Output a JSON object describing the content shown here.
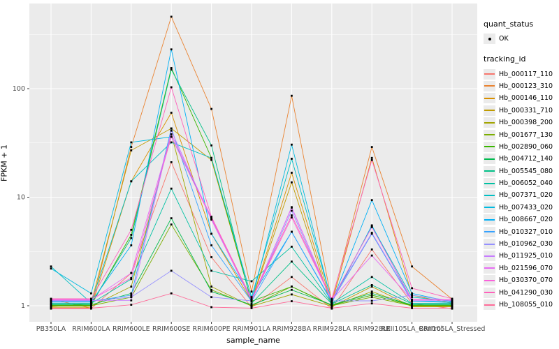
{
  "figure": {
    "background": "#FFFFFF",
    "panel_background": "#EBEBEB",
    "grid_color": "#FFFFFF",
    "tick_mark_color": "#333333",
    "tick_label_color": "#4D4D4D",
    "point_color": "#000000"
  },
  "chart_data": {
    "type": "line",
    "title": "",
    "xlabel": "sample_name",
    "ylabel": "FPKM + 1",
    "y_scale": "log10",
    "ylim": [
      0.8,
      610
    ],
    "y_ticks": [
      "1",
      "10",
      "100"
    ],
    "y_tick_values": [
      1,
      10,
      100
    ],
    "y_minor_values": [
      3.162,
      31.62,
      316.2
    ],
    "grid": "on",
    "legend_position": "right",
    "point_marker": "small-black-point",
    "categories": [
      "PB350LA",
      "RRIM600LA",
      "RRIM600LE",
      "RRIM600SE",
      "RRIM600PE",
      "RRIM901LA",
      "RRIM928BA",
      "RRIM928LA",
      "RRIM928LE",
      "RRII105LA_Control",
      "RRII105LA_Stressed"
    ],
    "series": [
      {
        "name": "Hb_000117_110",
        "color": "#F8766D",
        "values": [
          0.94,
          0.94,
          2.0,
          21,
          2.8,
          0.97,
          1.84,
          0.94,
          3.3,
          1.05,
          0.94
        ]
      },
      {
        "name": "Hb_000123_310",
        "color": "#EA8331",
        "values": [
          1.15,
          0.95,
          29,
          460,
          65,
          1.35,
          86,
          1.1,
          29,
          2.3,
          1.15
        ]
      },
      {
        "name": "Hb_000146_110",
        "color": "#D89000",
        "values": [
          0.96,
          0.96,
          14,
          60,
          4.6,
          1.1,
          16.8,
          1.05,
          23,
          1.25,
          1.05
        ]
      },
      {
        "name": "Hb_000331_710",
        "color": "#C09B00",
        "values": [
          0.98,
          1.05,
          27,
          43,
          22,
          1.1,
          13.7,
          0.98,
          1.5,
          0.98,
          0.98
        ]
      },
      {
        "name": "Hb_000398_200",
        "color": "#A3A500",
        "values": [
          0.99,
          0.99,
          1.5,
          38,
          1.5,
          0.99,
          1.27,
          0.99,
          1.35,
          0.99,
          0.99
        ]
      },
      {
        "name": "Hb_001677_130",
        "color": "#7CAE00",
        "values": [
          1.0,
          1.0,
          1.2,
          5.6,
          1.4,
          1.0,
          1.5,
          1.0,
          1.2,
          1.0,
          1.0
        ]
      },
      {
        "name": "Hb_002890_060",
        "color": "#39B600",
        "values": [
          1.01,
          1.01,
          4.5,
          155,
          23,
          1.1,
          1.5,
          1.01,
          1.25,
          1.01,
          1.01
        ]
      },
      {
        "name": "Hb_004712_140",
        "color": "#00BB4E",
        "values": [
          1.02,
          1.02,
          1.3,
          6.4,
          1.35,
          1.02,
          1.4,
          1.02,
          1.3,
          1.02,
          1.02
        ]
      },
      {
        "name": "Hb_005545_080",
        "color": "#00C087",
        "values": [
          1.04,
          1.04,
          4.2,
          150,
          30,
          1.05,
          2.55,
          1.04,
          1.55,
          1.04,
          1.04
        ]
      },
      {
        "name": "Hb_006052_040",
        "color": "#00C1A3",
        "values": [
          1.05,
          1.05,
          1.76,
          12,
          2.1,
          1.68,
          3.5,
          1.05,
          1.84,
          1.05,
          1.05
        ]
      },
      {
        "name": "Hb_007371_020",
        "color": "#00BFC4",
        "values": [
          2.3,
          1.06,
          14,
          32,
          23,
          1.2,
          22.6,
          1.1,
          5.4,
          1.2,
          1.1
        ]
      },
      {
        "name": "Hb_007433_020",
        "color": "#00BAE0",
        "values": [
          2.2,
          1.3,
          32,
          36,
          6.5,
          1.1,
          30.5,
          1.07,
          5.5,
          1.1,
          1.07
        ]
      },
      {
        "name": "Hb_008667_020",
        "color": "#00B0F6",
        "values": [
          1.08,
          1.08,
          3.6,
          230,
          4.6,
          1.2,
          4.8,
          1.08,
          9.4,
          1.3,
          1.08
        ]
      },
      {
        "name": "Hb_010327_010",
        "color": "#35A2FF",
        "values": [
          1.1,
          1.1,
          1.25,
          43,
          3.6,
          1.1,
          4.8,
          1.1,
          4.6,
          1.1,
          1.1
        ]
      },
      {
        "name": "Hb_010962_030",
        "color": "#9590FF",
        "values": [
          1.11,
          1.11,
          1.2,
          2.1,
          1.2,
          1.11,
          7.5,
          1.11,
          1.11,
          1.25,
          1.11
        ]
      },
      {
        "name": "Hb_011925_010",
        "color": "#C77CFF",
        "values": [
          1.12,
          1.12,
          1.12,
          41,
          6.2,
          1.12,
          8.1,
          1.12,
          4.7,
          1.12,
          1.12
        ]
      },
      {
        "name": "Hb_021596_070",
        "color": "#E76BF3",
        "values": [
          1.13,
          1.13,
          2.0,
          38,
          6.5,
          1.13,
          8.0,
          1.13,
          2.9,
          1.13,
          1.13
        ]
      },
      {
        "name": "Hb_030370_070",
        "color": "#FA62DB",
        "values": [
          1.14,
          1.14,
          1.8,
          36,
          6.3,
          1.14,
          6.5,
          1.14,
          5.3,
          1.14,
          1.14
        ]
      },
      {
        "name": "Hb_041290_030",
        "color": "#FF62BC",
        "values": [
          1.16,
          1.16,
          5.0,
          103,
          6.6,
          1.16,
          6.8,
          1.16,
          22,
          1.45,
          1.16
        ]
      },
      {
        "name": "Hb_108055_010",
        "color": "#FF6A98",
        "values": [
          0.95,
          0.95,
          1.02,
          1.3,
          0.97,
          0.95,
          1.1,
          0.95,
          1.05,
          0.95,
          0.95
        ]
      }
    ]
  },
  "legend": {
    "quant_status_title": "quant_status",
    "quant_status_items": [
      {
        "label": "OK",
        "marker": "black-point"
      }
    ],
    "tracking_id_title": "tracking_id"
  }
}
